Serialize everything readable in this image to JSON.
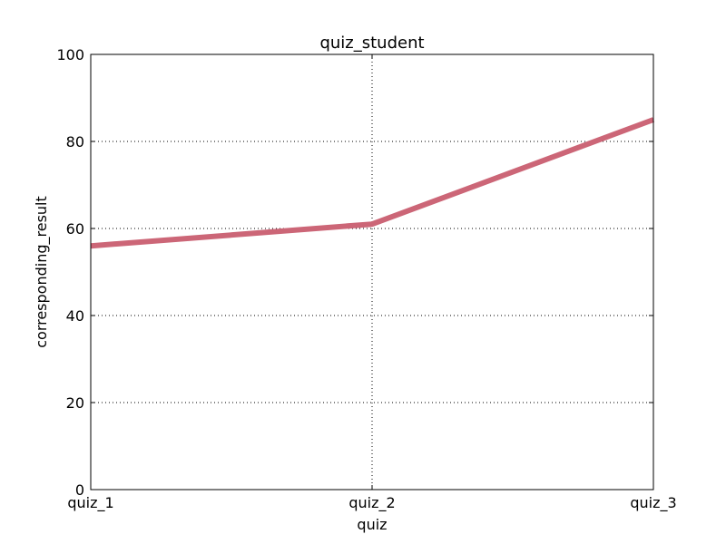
{
  "chart_data": {
    "type": "line",
    "title": "quiz_student",
    "xlabel": "quiz",
    "ylabel": "corresponding_result",
    "categories": [
      "quiz_1",
      "quiz_2",
      "quiz_3"
    ],
    "series": [
      {
        "values": [
          56,
          61,
          85
        ],
        "color": "#cc6677"
      }
    ],
    "ylim": [
      0,
      100
    ],
    "yticks": [
      "0",
      "20",
      "40",
      "60",
      "80",
      "100"
    ],
    "grid": true,
    "legend": false
  }
}
